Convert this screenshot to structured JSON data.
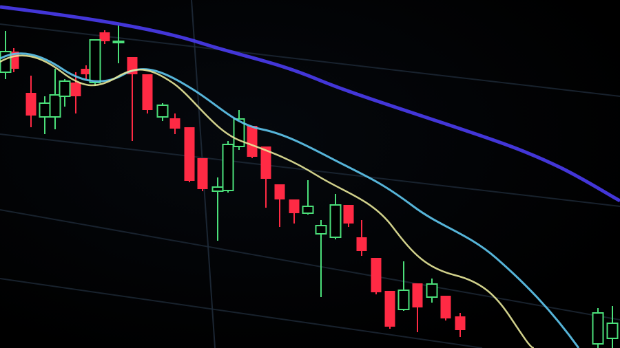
{
  "photo": {
    "subject": "candlestick-chart-on-screen",
    "colors": {
      "background": "#000000",
      "bearish_candle": "#ff2a44",
      "bullish_candle": "#4be07a",
      "ma_long": "#4a3cf0",
      "ma_mid": "#5fc8f0",
      "ma_short": "#e8e89a",
      "grid": "#1e2a38"
    }
  }
}
